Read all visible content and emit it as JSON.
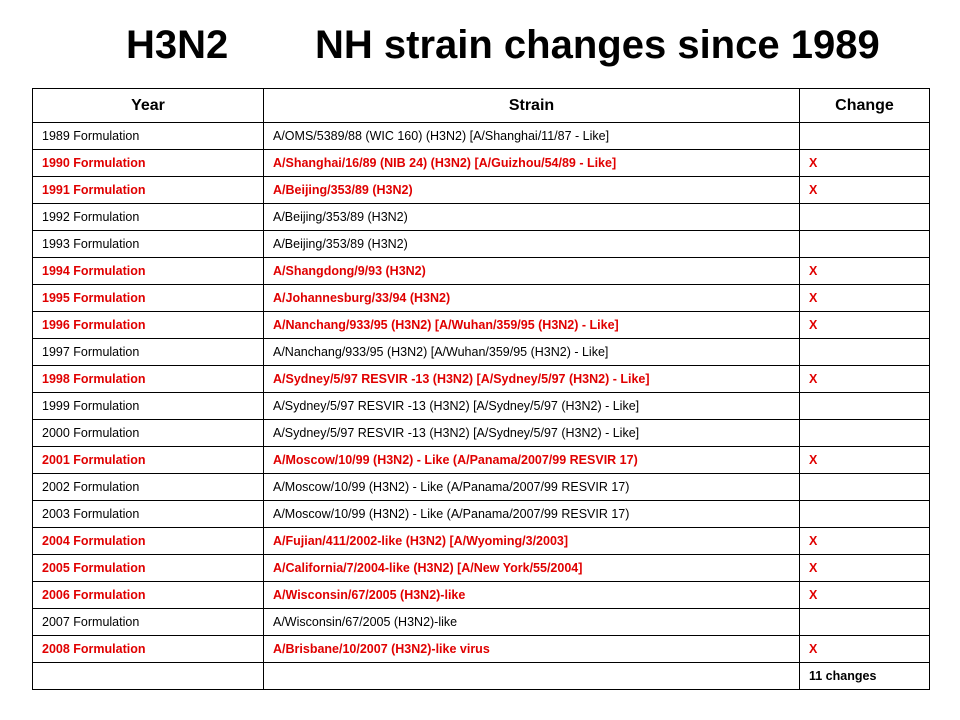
{
  "title": {
    "left": "H3N2",
    "right": "NH strain changes since 1989"
  },
  "table": {
    "headers": [
      "Year",
      "Strain",
      "Change"
    ],
    "rows": [
      {
        "year": "1989 Formulation",
        "strain": "A/OMS/5389/88 (WIC 160) (H3N2) [A/Shanghai/11/87  - Like]",
        "change": "",
        "changed": false
      },
      {
        "year": "1990 Formulation",
        "strain": "A/Shanghai/16/89 (NIB 24) (H3N2) [A/Guizhou/54/89 - Like]",
        "change": "X",
        "changed": true
      },
      {
        "year": "1991 Formulation",
        "strain": "A/Beijing/353/89 (H3N2)",
        "change": "X",
        "changed": true
      },
      {
        "year": "1992 Formulation",
        "strain": "A/Beijing/353/89 (H3N2)",
        "change": "",
        "changed": false
      },
      {
        "year": "1993 Formulation",
        "strain": "A/Beijing/353/89 (H3N2)",
        "change": "",
        "changed": false
      },
      {
        "year": "1994 Formulation",
        "strain": "A/Shangdong/9/93 (H3N2)",
        "change": "X",
        "changed": true
      },
      {
        "year": "1995 Formulation",
        "strain": "A/Johannesburg/33/94 (H3N2)",
        "change": "X",
        "changed": true
      },
      {
        "year": "1996 Formulation",
        "strain": "A/Nanchang/933/95 (H3N2) [A/Wuhan/359/95 (H3N2) - Like]",
        "change": "X",
        "changed": true
      },
      {
        "year": "1997 Formulation",
        "strain": "A/Nanchang/933/95 (H3N2) [A/Wuhan/359/95 (H3N2) - Like]",
        "change": "",
        "changed": false
      },
      {
        "year": "1998 Formulation",
        "strain": "A/Sydney/5/97 RESVIR -13 (H3N2) [A/Sydney/5/97 (H3N2) - Like]",
        "change": "X",
        "changed": true
      },
      {
        "year": "1999 Formulation",
        "strain": "A/Sydney/5/97 RESVIR -13 (H3N2) [A/Sydney/5/97 (H3N2) - Like]",
        "change": "",
        "changed": false
      },
      {
        "year": "2000 Formulation",
        "strain": "A/Sydney/5/97 RESVIR -13 (H3N2) [A/Sydney/5/97 (H3N2) - Like]",
        "change": "",
        "changed": false
      },
      {
        "year": "2001 Formulation",
        "strain": "A/Moscow/10/99 (H3N2) - Like (A/Panama/2007/99 RESVIR 17)",
        "change": "X",
        "changed": true
      },
      {
        "year": "2002 Formulation",
        "strain": "A/Moscow/10/99 (H3N2) - Like (A/Panama/2007/99 RESVIR 17)",
        "change": "",
        "changed": false
      },
      {
        "year": "2003 Formulation",
        "strain": "A/Moscow/10/99 (H3N2) - Like (A/Panama/2007/99 RESVIR 17)",
        "change": "",
        "changed": false
      },
      {
        "year": "2004 Formulation",
        "strain": "A/Fujian/411/2002-like (H3N2) [A/Wyoming/3/2003]",
        "change": "X",
        "changed": true
      },
      {
        "year": "2005 Formulation",
        "strain": "A/California/7/2004-like (H3N2) [A/New York/55/2004]",
        "change": "X",
        "changed": true
      },
      {
        "year": "2006 Formulation",
        "strain": "A/Wisconsin/67/2005 (H3N2)-like",
        "change": "X",
        "changed": true
      },
      {
        "year": "2007 Formulation",
        "strain": "A/Wisconsin/67/2005 (H3N2)-like",
        "change": "",
        "changed": false
      },
      {
        "year": "2008 Formulation",
        "strain": "A/Brisbane/10/2007 (H3N2)-like virus",
        "change": "X",
        "changed": true
      }
    ],
    "total": {
      "year": "",
      "strain": "",
      "change": "11 changes"
    }
  },
  "colors": {
    "changed": "#e00000",
    "normal": "#000000",
    "border": "#000000"
  }
}
